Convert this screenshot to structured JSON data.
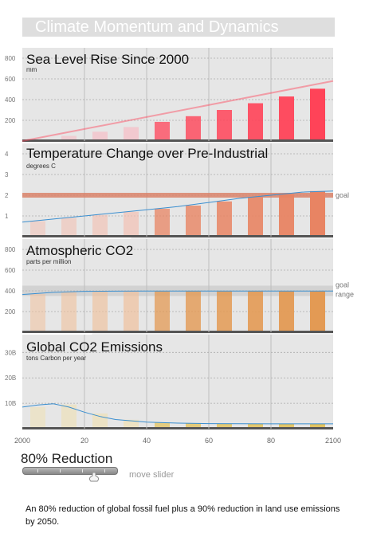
{
  "title": "Climate Momentum and Dynamics",
  "x_ticks": [
    "2000",
    "20",
    "40",
    "60",
    "80",
    "2100"
  ],
  "goal_label": "goal",
  "goal_range_label": "goal range",
  "controls": {
    "slider_label": "80% Reduction",
    "slider_value_percent": 80,
    "move_hint": "move slider"
  },
  "caption": "An 80% reduction of global fossil fuel plus a 90% reduction in land use emissions by 2050.",
  "chart_data": [
    {
      "type": "bar",
      "title": "Sea Level Rise Since 2000",
      "ylabel": "mm",
      "ylim": [
        0,
        900
      ],
      "y_ticks": [
        {
          "value": 200,
          "label": "200"
        },
        {
          "value": 400,
          "label": "400"
        },
        {
          "value": 600,
          "label": "600"
        },
        {
          "value": 800,
          "label": "800"
        }
      ],
      "x": [
        2005,
        2015,
        2025,
        2035,
        2045,
        2055,
        2065,
        2075,
        2085,
        2095
      ],
      "values": [
        15,
        50,
        90,
        135,
        185,
        240,
        300,
        365,
        430,
        505
      ],
      "highlight": [
        15,
        50,
        90,
        135,
        185,
        240,
        300,
        365,
        430,
        505
      ],
      "line_x": [
        2000,
        2100
      ],
      "line_y": [
        0,
        580
      ],
      "colors": {
        "bar_light": "#f7bcc5",
        "bar_dark": "#ff4358",
        "line": "#ff4358"
      }
    },
    {
      "type": "bar",
      "title": "Temperature Change over Pre-Industrial",
      "ylabel": "degrees C",
      "ylim": [
        0,
        4.5
      ],
      "y_ticks": [
        {
          "value": 1,
          "label": "1"
        },
        {
          "value": 2,
          "label": "2"
        },
        {
          "value": 3,
          "label": "3"
        },
        {
          "value": 4,
          "label": "4"
        }
      ],
      "x": [
        2005,
        2015,
        2025,
        2035,
        2045,
        2055,
        2065,
        2075,
        2085,
        2095
      ],
      "values": [
        0.75,
        0.9,
        1.05,
        1.2,
        1.35,
        1.5,
        1.7,
        1.9,
        2.05,
        2.2
      ],
      "line_x": [
        2000,
        2010,
        2020,
        2030,
        2040,
        2050,
        2060,
        2070,
        2080,
        2090,
        2100
      ],
      "line_y": [
        0.7,
        0.85,
        1.0,
        1.15,
        1.3,
        1.45,
        1.65,
        1.85,
        2.0,
        2.15,
        2.2
      ],
      "goal": 2,
      "colors": {
        "bar_light": "#f2c1b4",
        "bar_dark": "#e88463",
        "line": "#3b8fd0",
        "goal": "#d9826a"
      }
    },
    {
      "type": "bar",
      "title": "Atmospheric CO2",
      "ylabel": "parts per million",
      "ylim": [
        0,
        900
      ],
      "y_ticks": [
        {
          "value": 200,
          "label": "200"
        },
        {
          "value": 400,
          "label": "400"
        },
        {
          "value": 600,
          "label": "600"
        },
        {
          "value": 800,
          "label": "800"
        }
      ],
      "x": [
        2005,
        2015,
        2025,
        2035,
        2045,
        2055,
        2065,
        2075,
        2085,
        2095
      ],
      "values": [
        370,
        390,
        395,
        395,
        395,
        395,
        395,
        395,
        395,
        395
      ],
      "line_x": [
        2000,
        2010,
        2020,
        2030,
        2040,
        2050,
        2060,
        2070,
        2080,
        2090,
        2100
      ],
      "line_y": [
        365,
        385,
        395,
        397,
        398,
        398,
        398,
        398,
        398,
        398,
        398
      ],
      "goal_range": [
        350,
        450
      ],
      "colors": {
        "bar_light": "#f0c19d",
        "bar_dark": "#e39a54",
        "line": "#3b8fd0",
        "goal": "#bdbdbd"
      }
    },
    {
      "type": "bar",
      "title": "Global CO2 Emissions",
      "ylabel": "tons Carbon per year",
      "ylim": [
        0,
        37
      ],
      "y_ticks": [
        {
          "value": 10,
          "label": "10B"
        },
        {
          "value": 20,
          "label": "20B"
        },
        {
          "value": 30,
          "label": "30B"
        }
      ],
      "x": [
        2005,
        2015,
        2025,
        2035,
        2045,
        2055,
        2065,
        2075,
        2085,
        2095
      ],
      "values": [
        8.5,
        9.5,
        6.0,
        3.5,
        2.5,
        2.2,
        2.0,
        1.9,
        1.9,
        1.9
      ],
      "line_x": [
        2000,
        2005,
        2010,
        2015,
        2020,
        2025,
        2030,
        2040,
        2050,
        2060,
        2080,
        2100
      ],
      "line_y": [
        8.5,
        9.3,
        9.8,
        8.5,
        6.5,
        4.8,
        3.6,
        2.6,
        2.2,
        2.0,
        1.9,
        1.9
      ],
      "colors": {
        "bar_light": "#efe0b2",
        "bar_dark": "#e2c35f",
        "line": "#3b8fd0"
      }
    }
  ]
}
